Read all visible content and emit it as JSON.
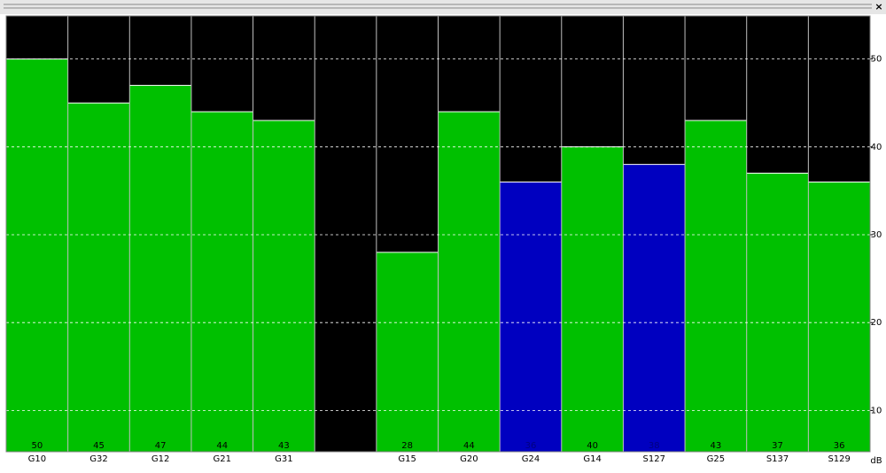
{
  "window": {
    "close": "×"
  },
  "chart_data": {
    "type": "bar",
    "categories": [
      "G10",
      "G32",
      "G12",
      "G21",
      "G31",
      null,
      "G15",
      "G20",
      "G24",
      "G14",
      "S127",
      "G25",
      "S137",
      "S129"
    ],
    "values": [
      50,
      45,
      47,
      44,
      43,
      null,
      28,
      44,
      36,
      40,
      38,
      43,
      37,
      36
    ],
    "colors": [
      "#00c000",
      "#00c000",
      "#00c000",
      "#00c000",
      "#00c000",
      null,
      "#00c000",
      "#00c000",
      "#0000c0",
      "#00c000",
      "#0000c0",
      "#00c000",
      "#00c000",
      "#00c000"
    ],
    "ylim": [
      5.3,
      54.9
    ],
    "yticks": [
      10,
      20,
      30,
      40,
      50
    ],
    "ylabel": "dB",
    "grid": true
  }
}
